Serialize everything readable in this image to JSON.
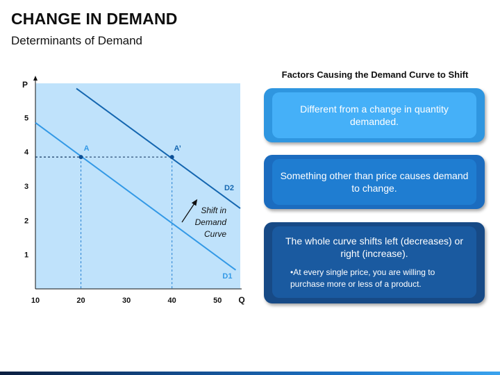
{
  "title": "CHANGE IN DEMAND",
  "subtitle": "Determinants of Demand",
  "chart_data": {
    "type": "line",
    "x_axis_label": "Q",
    "y_axis_label": "P",
    "xlim": [
      10,
      55
    ],
    "ylim": [
      0,
      6
    ],
    "x_ticks": [
      "10",
      "20",
      "30",
      "40",
      "50"
    ],
    "y_ticks": [
      "1",
      "2",
      "3",
      "4",
      "5"
    ],
    "grid": false,
    "background_color": "#bfe2fb",
    "series": [
      {
        "name": "D1",
        "color": "#3399e6",
        "x": [
          10,
          54
        ],
        "y": [
          4.85,
          0.55
        ]
      },
      {
        "name": "D2",
        "color": "#1466b0",
        "x": [
          19,
          55
        ],
        "y": [
          5.85,
          2.35
        ]
      }
    ],
    "points": [
      {
        "label": "A",
        "x": 20,
        "y": 3.85
      },
      {
        "label": "A’",
        "x": 40,
        "y": 3.85
      }
    ],
    "annotation": {
      "lines": [
        "Shift in",
        "Demand",
        "Curve"
      ]
    }
  },
  "factors": {
    "heading": "Factors Causing the Demand Curve to Shift",
    "cards": [
      {
        "text": "Different from a change in quantity demanded."
      },
      {
        "text": "Something other than price causes demand to change."
      },
      {
        "text": "The whole curve shifts left (decreases) or right (increase).",
        "note": "•At every single price, you are willing to purchase more or less of a product."
      }
    ]
  }
}
